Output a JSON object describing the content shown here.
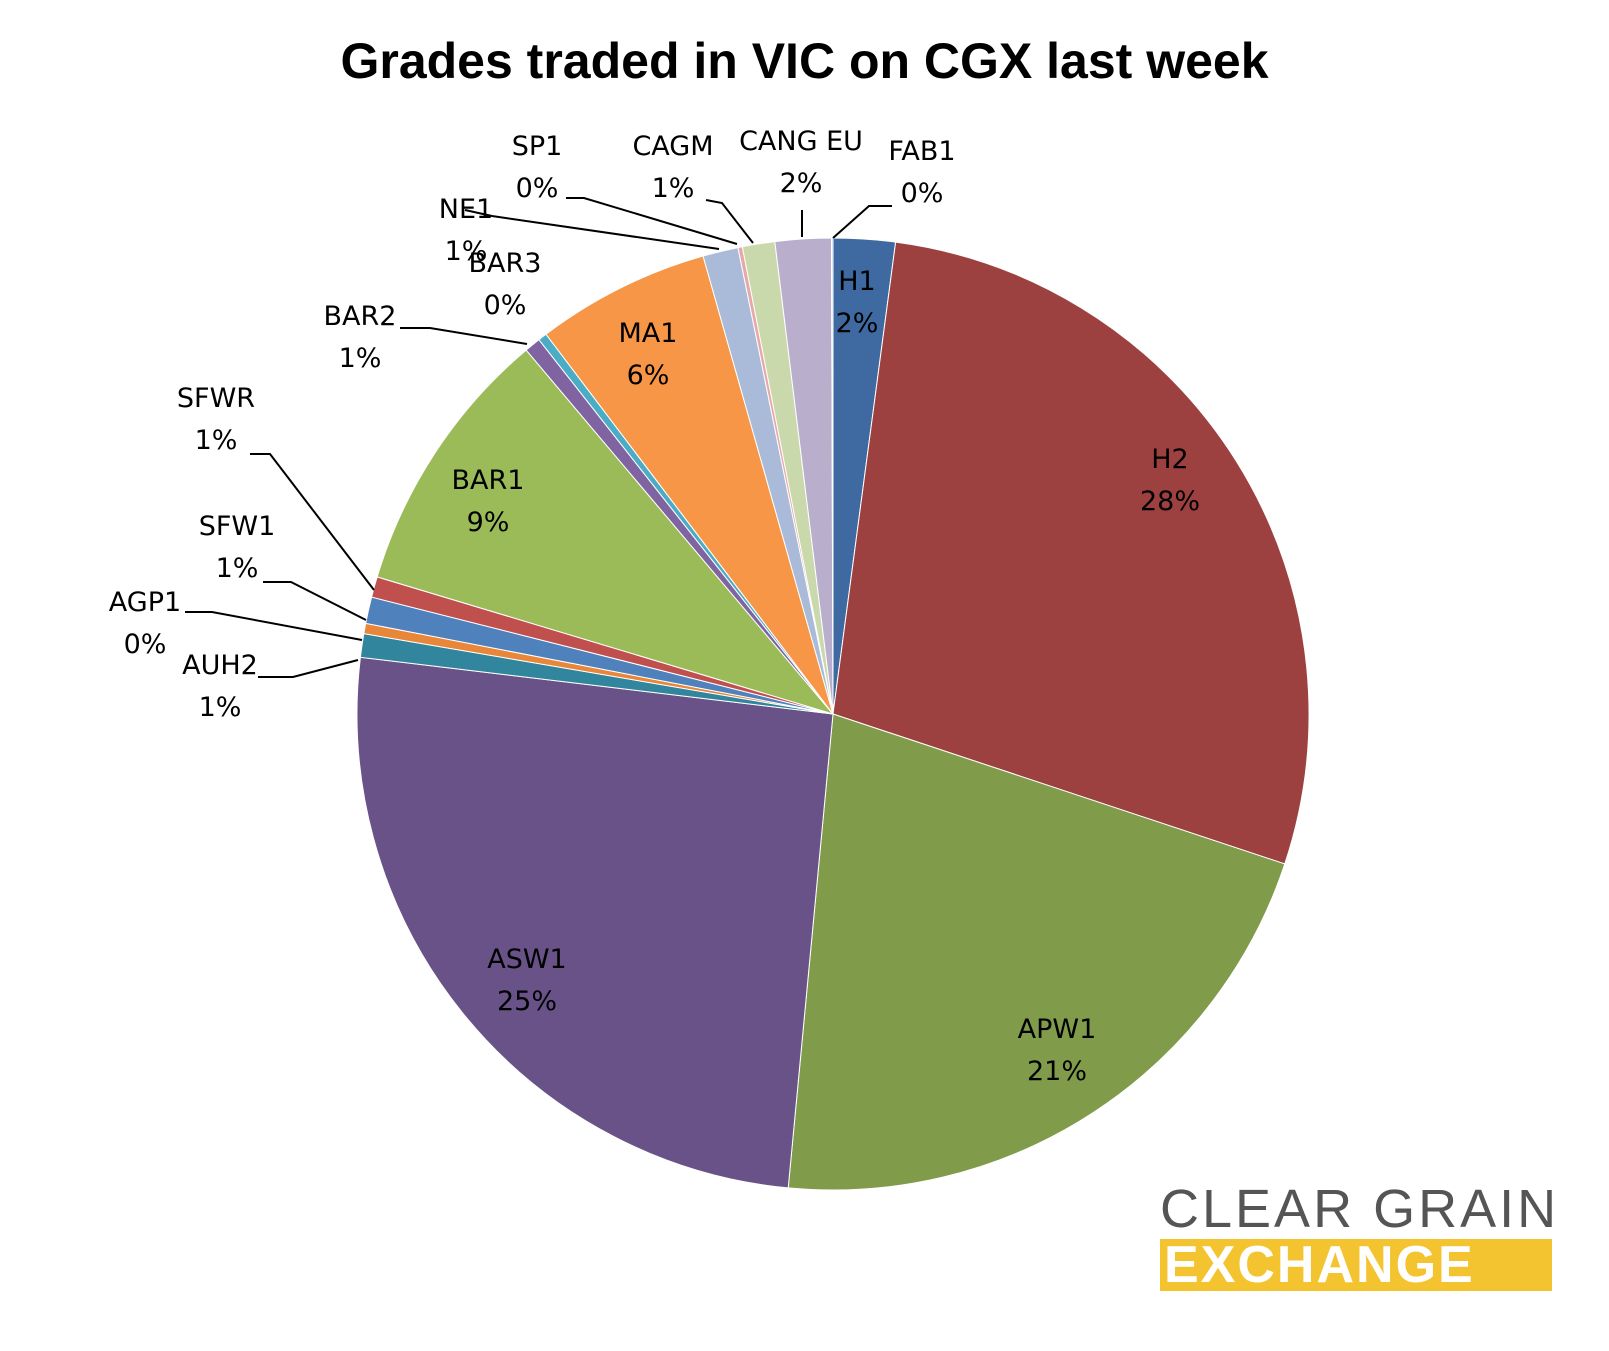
{
  "chart_data": {
    "type": "pie",
    "title": "Grades traded in VIC on CGX last week",
    "slices": [
      {
        "label": "H1",
        "display": "2%",
        "value": 2.1,
        "color": "#3e6aa1"
      },
      {
        "label": "H2",
        "display": "28%",
        "value": 28.0,
        "color": "#9c4040"
      },
      {
        "label": "APW1",
        "display": "21%",
        "value": 21.4,
        "color": "#809b4a"
      },
      {
        "label": "ASW1",
        "display": "25%",
        "value": 25.4,
        "color": "#695287"
      },
      {
        "label": "AUH2",
        "display": "1%",
        "value": 0.8,
        "color": "#31859c"
      },
      {
        "label": "AGP1",
        "display": "0%",
        "value": 0.35,
        "color": "#e8863a"
      },
      {
        "label": "SFW1",
        "display": "1%",
        "value": 0.9,
        "color": "#4f81bd"
      },
      {
        "label": "SFWR",
        "display": "1%",
        "value": 0.7,
        "color": "#c0504d"
      },
      {
        "label": "BAR1",
        "display": "9%",
        "value": 9.2,
        "color": "#9bbb59"
      },
      {
        "label": "BAR2",
        "display": "1%",
        "value": 0.55,
        "color": "#8064a2"
      },
      {
        "label": "BAR3",
        "display": "0%",
        "value": 0.3,
        "color": "#4bacc6"
      },
      {
        "label": "MA1",
        "display": "6%",
        "value": 5.9,
        "color": "#f79646"
      },
      {
        "label": "NE1",
        "display": "1%",
        "value": 1.2,
        "color": "#a9bbd9"
      },
      {
        "label": "SP1",
        "display": "0%",
        "value": 0.15,
        "color": "#e6a9a8"
      },
      {
        "label": "CAGM",
        "display": "1%",
        "value": 1.1,
        "color": "#c9d9ab"
      },
      {
        "label": "CANG EU",
        "display": "2%",
        "value": 1.9,
        "color": "#b9aecc"
      },
      {
        "label": "FAB1",
        "display": "0%",
        "value": 0.05,
        "color": "#9fd4e2"
      }
    ]
  },
  "logo": {
    "line1": "CLEAR GRAIN",
    "line2": "EXCHANGE",
    "accent_color": "#f4c430",
    "text_color": "#555555"
  }
}
